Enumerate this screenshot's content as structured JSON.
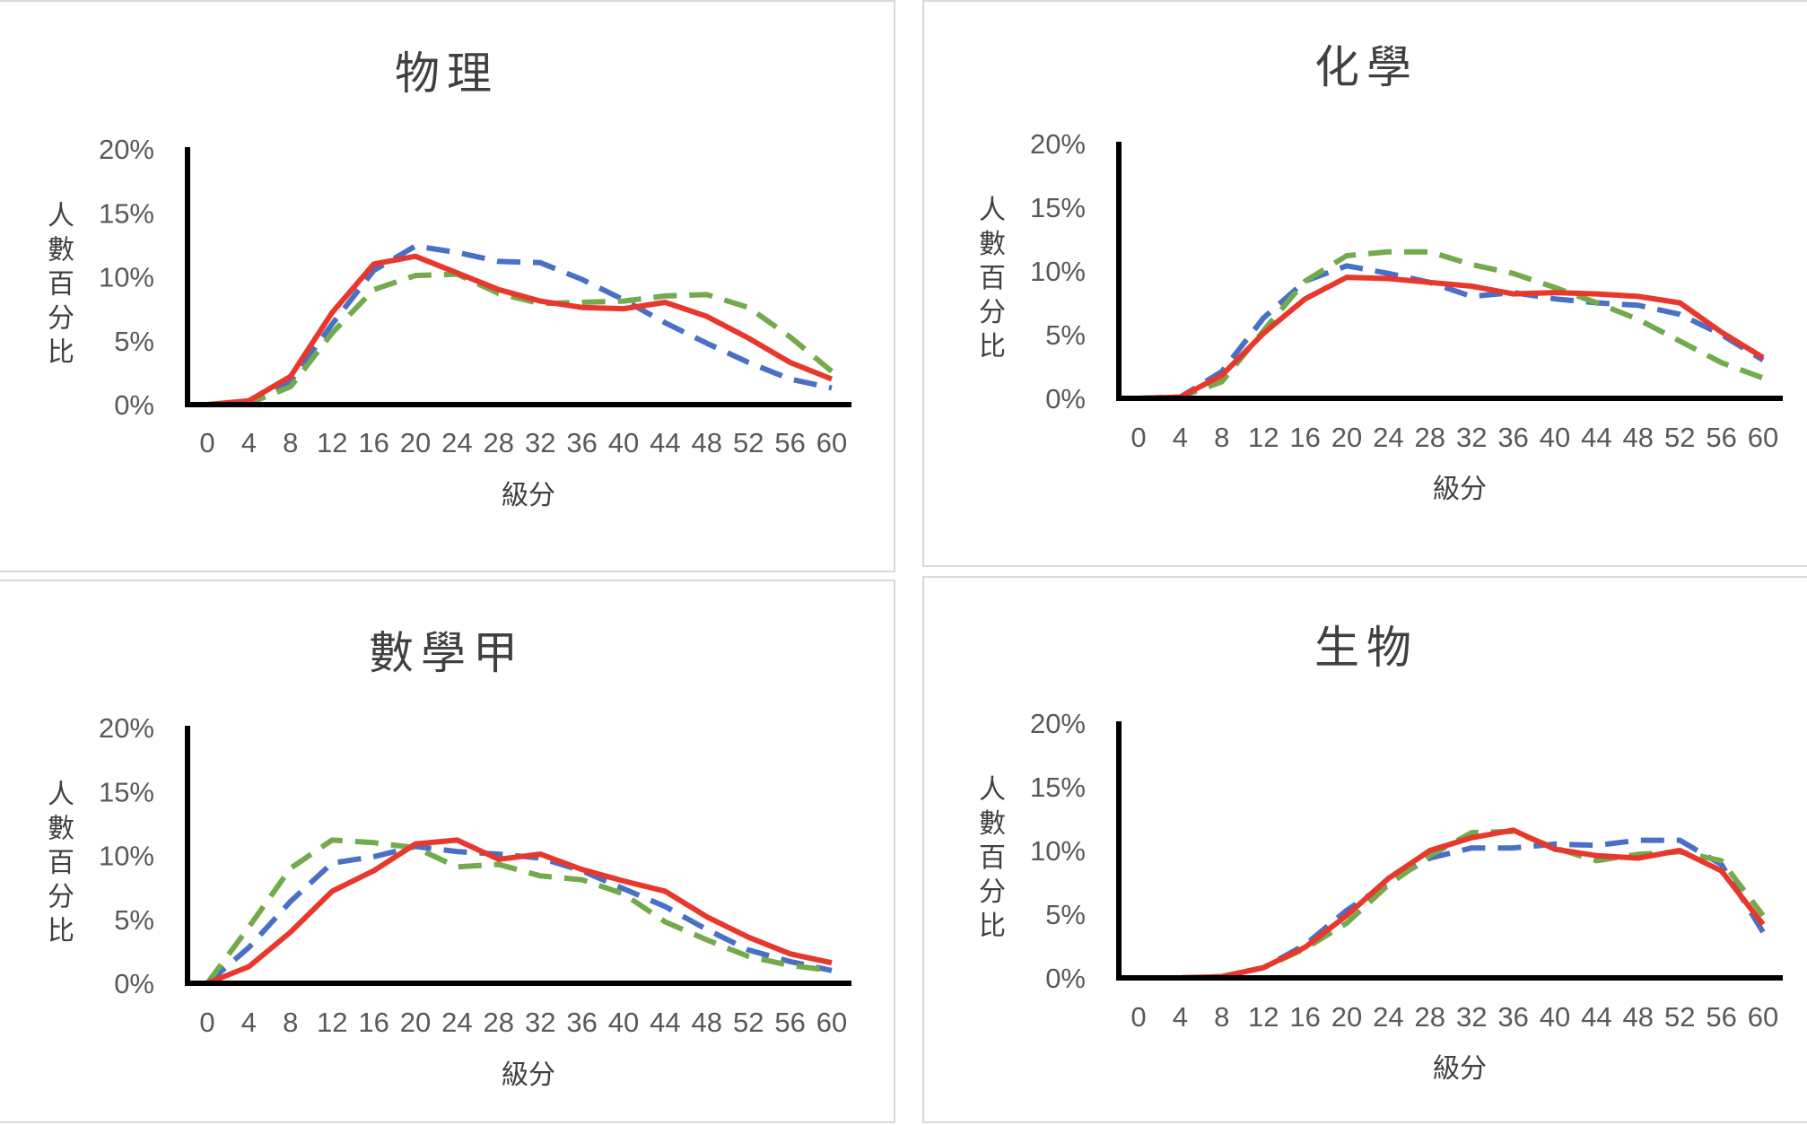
{
  "colors": {
    "red": "#e8372c",
    "blue": "#4a70c6",
    "green": "#72aa4c",
    "axis": "#000000"
  },
  "chart_data": [
    {
      "type": "line",
      "title": "物理",
      "xlabel": "級分",
      "ylabel": "人數百分比",
      "x": [
        0,
        4,
        8,
        12,
        16,
        20,
        24,
        28,
        32,
        36,
        40,
        44,
        48,
        52,
        56,
        60
      ],
      "ylim": [
        0,
        20
      ],
      "yticks": [
        "20%",
        "15%",
        "10%",
        "5%",
        "0%"
      ],
      "series": [
        {
          "color": "red",
          "style": "solid",
          "values": [
            0,
            0.3,
            2.2,
            7.2,
            11.0,
            11.6,
            10.3,
            9.0,
            8.1,
            7.6,
            7.5,
            8.0,
            6.9,
            5.2,
            3.3,
            2.0
          ]
        },
        {
          "color": "blue",
          "style": "dashed",
          "values": [
            0,
            0.1,
            1.8,
            6.3,
            10.5,
            12.4,
            11.9,
            11.2,
            11.1,
            9.8,
            8.2,
            6.4,
            4.8,
            3.3,
            2.0,
            1.3
          ]
        },
        {
          "color": "green",
          "style": "dashed",
          "values": [
            0,
            0.1,
            1.4,
            5.6,
            9.0,
            10.1,
            10.2,
            8.7,
            7.9,
            8.0,
            8.1,
            8.5,
            8.6,
            7.6,
            5.3,
            2.6
          ]
        }
      ]
    },
    {
      "type": "line",
      "title": "化學",
      "xlabel": "級分",
      "ylabel": "人數百分比",
      "x": [
        0,
        4,
        8,
        12,
        16,
        20,
        24,
        28,
        32,
        36,
        40,
        44,
        48,
        52,
        56,
        60
      ],
      "ylim": [
        0,
        20
      ],
      "yticks": [
        "20%",
        "15%",
        "10%",
        "5%",
        "0%"
      ],
      "series": [
        {
          "color": "red",
          "style": "solid",
          "values": [
            0,
            0.1,
            1.8,
            5.1,
            7.8,
            9.5,
            9.4,
            9.1,
            8.8,
            8.2,
            8.3,
            8.2,
            8.0,
            7.5,
            5.2,
            3.2
          ]
        },
        {
          "color": "blue",
          "style": "dashed",
          "values": [
            0,
            0.1,
            2.1,
            6.3,
            9.2,
            10.4,
            9.8,
            9.1,
            8.0,
            8.3,
            7.8,
            7.5,
            7.3,
            6.6,
            5.0,
            3.0
          ]
        },
        {
          "color": "green",
          "style": "dashed",
          "values": [
            0,
            0.1,
            1.3,
            5.3,
            9.2,
            11.2,
            11.5,
            11.5,
            10.5,
            9.8,
            8.7,
            7.5,
            6.2,
            4.5,
            2.8,
            1.6
          ]
        }
      ]
    },
    {
      "type": "line",
      "title": "數學甲",
      "xlabel": "級分",
      "ylabel": "人數百分比",
      "x": [
        0,
        4,
        8,
        12,
        16,
        20,
        24,
        28,
        32,
        36,
        40,
        44,
        48,
        52,
        56,
        60
      ],
      "ylim": [
        0,
        20
      ],
      "yticks": [
        "20%",
        "15%",
        "10%",
        "5%",
        "0%"
      ],
      "series": [
        {
          "color": "red",
          "style": "solid",
          "values": [
            0,
            1.3,
            4.0,
            7.2,
            8.8,
            10.9,
            11.2,
            9.7,
            10.1,
            8.9,
            8.0,
            7.2,
            5.2,
            3.6,
            2.3,
            1.6
          ]
        },
        {
          "color": "blue",
          "style": "dashed",
          "values": [
            0,
            2.8,
            6.4,
            9.4,
            9.9,
            10.7,
            10.3,
            10.1,
            9.8,
            8.8,
            7.4,
            6.0,
            4.2,
            2.6,
            1.7,
            1.0
          ]
        },
        {
          "color": "green",
          "style": "dashed",
          "values": [
            0,
            4.4,
            9.0,
            11.2,
            11.0,
            10.6,
            9.1,
            9.3,
            8.4,
            8.1,
            7.0,
            4.8,
            3.4,
            2.1,
            1.4,
            1.0
          ]
        }
      ]
    },
    {
      "type": "line",
      "title": "生物",
      "xlabel": "級分",
      "ylabel": "人數百分比",
      "x": [
        0,
        4,
        8,
        12,
        16,
        20,
        24,
        28,
        32,
        36,
        40,
        44,
        48,
        52,
        56,
        60
      ],
      "ylim": [
        0,
        20
      ],
      "yticks": [
        "20%",
        "15%",
        "10%",
        "5%",
        "0%"
      ],
      "series": [
        {
          "color": "red",
          "style": "solid",
          "values": [
            0,
            0,
            0.1,
            0.8,
            2.4,
            4.9,
            7.8,
            10.0,
            11.0,
            11.6,
            10.1,
            9.6,
            9.4,
            10.0,
            8.4,
            4.2
          ]
        },
        {
          "color": "blue",
          "style": "dashed",
          "values": [
            0,
            0,
            0.1,
            0.8,
            2.6,
            5.3,
            7.5,
            9.4,
            10.2,
            10.2,
            10.5,
            10.4,
            10.8,
            10.8,
            8.9,
            3.6
          ]
        },
        {
          "color": "green",
          "style": "dashed",
          "values": [
            0,
            0,
            0.1,
            0.8,
            2.3,
            4.3,
            7.3,
            9.6,
            11.4,
            11.5,
            10.2,
            9.2,
            9.7,
            9.9,
            9.2,
            4.9
          ]
        }
      ]
    }
  ]
}
